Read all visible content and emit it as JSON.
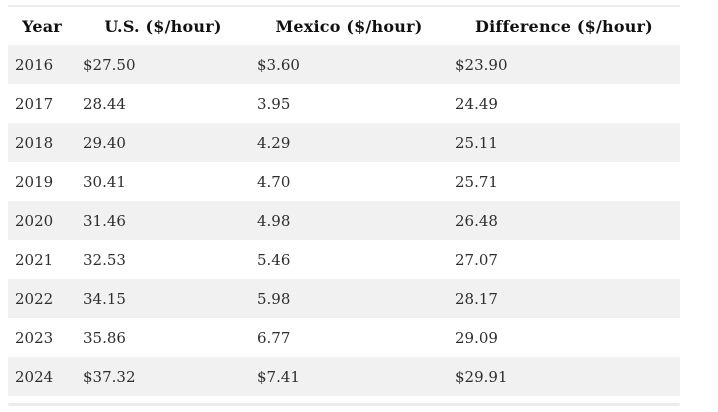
{
  "chart_data": {
    "type": "table",
    "title": "",
    "columns": [
      "Year",
      "U.S. ($/hour)",
      "Mexico ($/hour)",
      "Difference ($/hour)"
    ],
    "rows": [
      [
        "2016",
        "$27.50",
        "$3.60",
        "$23.90"
      ],
      [
        "2017",
        "28.44",
        "3.95",
        "24.49"
      ],
      [
        "2018",
        "29.40",
        "4.29",
        "25.11"
      ],
      [
        "2019",
        "30.41",
        "4.70",
        "25.71"
      ],
      [
        "2020",
        "31.46",
        "4.98",
        "26.48"
      ],
      [
        "2021",
        "32.53",
        "5.46",
        "27.07"
      ],
      [
        "2022",
        "34.15",
        "5.98",
        "28.17"
      ],
      [
        "2023",
        "35.86",
        "6.77",
        "29.09"
      ],
      [
        "2024",
        "$37.32",
        "$7.41",
        "$29.91"
      ]
    ],
    "series": [
      {
        "name": "U.S. ($/hour)",
        "values": [
          27.5,
          28.44,
          29.4,
          30.41,
          31.46,
          32.53,
          34.15,
          35.86,
          37.32
        ]
      },
      {
        "name": "Mexico ($/hour)",
        "values": [
          3.6,
          3.95,
          4.29,
          4.7,
          4.98,
          5.46,
          5.98,
          6.77,
          7.41
        ]
      },
      {
        "name": "Difference ($/hour)",
        "values": [
          23.9,
          24.49,
          25.11,
          25.71,
          26.48,
          27.07,
          28.17,
          29.09,
          29.91
        ]
      }
    ],
    "categories": [
      2016,
      2017,
      2018,
      2019,
      2020,
      2021,
      2022,
      2023,
      2024
    ],
    "layout_hints": {
      "stripe_odd_rows": true,
      "header_align": "center",
      "cell_align": "left"
    }
  },
  "colors": {
    "row_stripe": "#f1f1f1",
    "row_plain": "#ffffff",
    "top_border": "#ededed",
    "bottom_divider": "#ececec",
    "header_text": "#111111",
    "body_text": "#2e2e2e",
    "page_background": "#ffffff"
  }
}
